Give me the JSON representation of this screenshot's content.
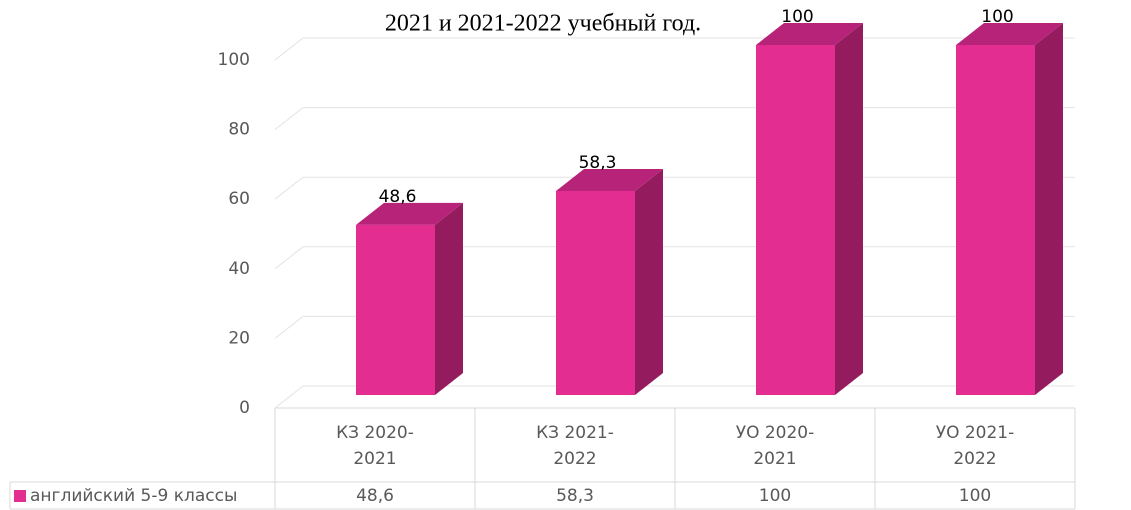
{
  "chart_data": {
    "type": "bar3d",
    "title": "2021 и 2021-2022 учебный год.",
    "categories": [
      "КЗ 2020-2021",
      "КЗ 2021-2022",
      "УО 2020-2021",
      "УО 2021-2022"
    ],
    "series": [
      {
        "name": "английский 5-9 классы",
        "color": "#e32d91",
        "values": [
          48.6,
          58.3,
          100,
          100
        ],
        "value_labels": [
          "48,6",
          "58,3",
          "100",
          "100"
        ]
      }
    ],
    "ylim": [
      0,
      100
    ],
    "yticks": [
      0,
      20,
      40,
      60,
      80,
      100
    ],
    "grid": true,
    "data_table": true
  }
}
